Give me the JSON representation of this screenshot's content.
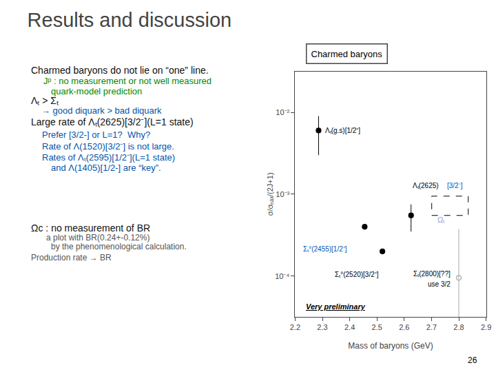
{
  "chart_data": {
    "type": "scatter",
    "title": "Results and discussion",
    "x_label": "Mass of baryons (GeV)",
    "y_label": "σ/σₕₐₓ/(2J+1)",
    "log": "y",
    "grid": false,
    "xlim": [
      2.2,
      2.9
    ],
    "xticks": [
      2.2,
      2.3,
      2.4,
      2.5,
      2.6,
      2.7,
      2.8,
      2.9
    ],
    "ylim": [
      3.1622776601683795e-05,
      0.03162277660168379
    ],
    "yticks": [
      {
        "value": 0.0001,
        "label": "10⁻⁴"
      },
      {
        "value": 0.001,
        "label": "10⁻³"
      },
      {
        "value": 0.01,
        "label": "10⁻²"
      }
    ],
    "series": [
      {
        "x": [
          2.286
        ],
        "values": [
          0.006
        ],
        "errors": [
          0.003
        ],
        "color": "#000000",
        "marker": "circle"
      },
      {
        "x": [
          2.455
        ],
        "values": [
          0.0004
        ],
        "color": "#000000",
        "marker": "circle"
      },
      {
        "x": [
          2.52
        ],
        "values": [
          0.0002
        ],
        "color": "#000000",
        "marker": "circle"
      },
      {
        "x": [
          2.625
        ],
        "values": [
          0.00055
        ],
        "errors": [
          0.0002
        ],
        "color": "#000000",
        "marker": "circle"
      },
      {
        "x": [
          2.8
        ],
        "values": [
          9.5e-05
        ],
        "errors": [
          0.00028
        ],
        "color": "#aaaaaa",
        "marker": "circle-open"
      }
    ],
    "annotations": [
      {
        "text": "Charmed baryons do not lie on “one” line.",
        "color": "#111111"
      },
      {
        "text": "Jᵖ : no measurement or not well measured",
        "color": "#008800"
      },
      {
        "text": "quark-model prediction",
        "color": "#008800"
      },
      {
        "text": "Λₜ > Σₜ",
        "color": "#111111"
      },
      {
        "text": "→ good diquark > bad diquark",
        "color": "#0055aa"
      },
      {
        "text": "Large rate of Λₜ(2625)[3/2⁻](L=1 state)",
        "color": "#111111"
      },
      {
        "text": "Prefer [3/2-] or L=1?  Why?",
        "color": "#0055aa"
      },
      {
        "text": "Rate of Λ(1520)[3/2⁻] is not large.",
        "color": "#0055aa"
      },
      {
        "text": "Rates of Λₜ(2595)[1/2⁻](L=1 state)",
        "color": "#0055aa"
      },
      {
        "text": "and Λ(1405)[1/2-] are “key”.",
        "color": "#0055aa"
      },
      {
        "text": "Ωc : no measurement of BR",
        "color": "#111111"
      },
      {
        "text": "a plot with BR(0.24+-0.12%)",
        "color": "#555555"
      },
      {
        "text": "by the phenomenological calculation.",
        "color": "#555555"
      },
      {
        "text": "Production rate → BR",
        "color": "#555555"
      },
      {
        "text": "Charmed baryons",
        "color": "#000000"
      },
      {
        "text": "26",
        "color": "#000000"
      },
      {
        "text": "Λₜ(g.s)[1/2⁺]",
        "color": "#000000"
      },
      {
        "text": "Σₜ°(2455)[1/2⁺]",
        "color": "#0055aa"
      },
      {
        "text": "Σₜ°(2520)[3/2⁺]",
        "color": "#000000"
      },
      {
        "text": "Λₜ(2625)",
        "color": "#000000"
      },
      {
        "text": "[3/2⁻]",
        "color": "#0055aa"
      },
      {
        "text": "Ωₜ",
        "color": "#9999cc"
      },
      {
        "text": "Σₜ(2800)[??]",
        "color": "#000000"
      },
      {
        "text": "use 3/2",
        "color": "#000000"
      },
      {
        "text": "Very preliminary",
        "color": "#000000"
      }
    ]
  }
}
